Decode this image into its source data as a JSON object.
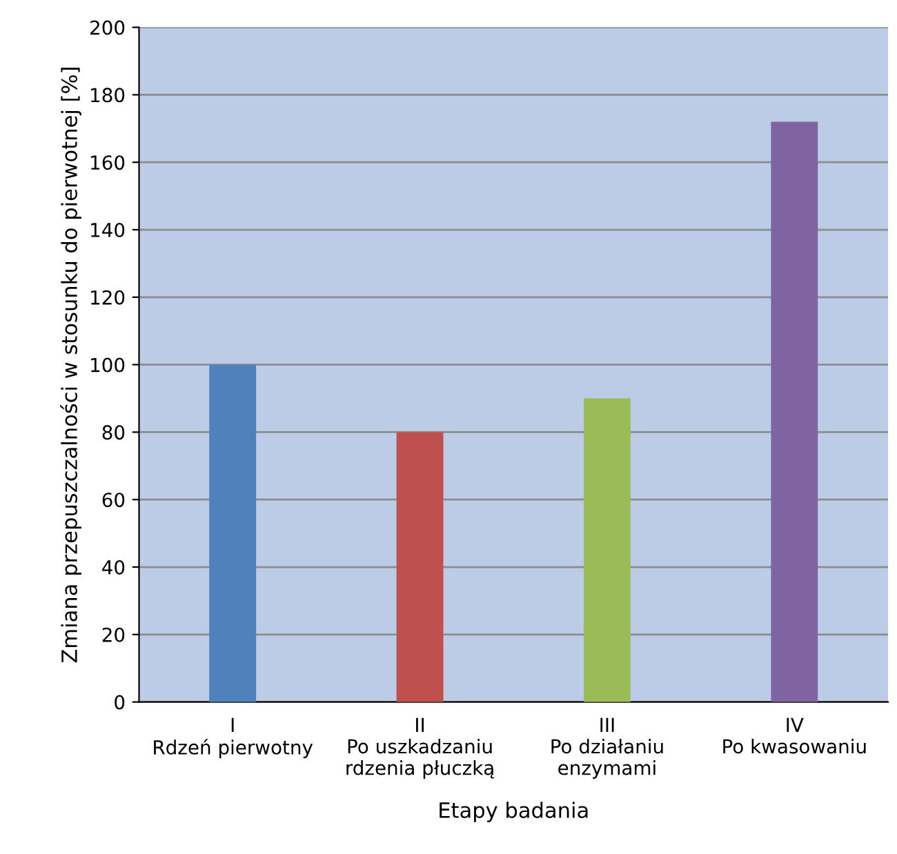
{
  "chart_data": {
    "type": "bar",
    "xlabel": "Etapy badania",
    "ylabel": "Zmiana przepuszczalności w stosunku do pierwotnej [%]",
    "categories": [
      "I\nRdzeń pierwotny",
      "II\nPo uszkadzaniu\nrdzenia płuczką",
      "III\nPo działaniu\nenzymami",
      "IV\nPo kwasowaniu"
    ],
    "values": [
      100,
      80,
      90,
      172
    ],
    "colors": [
      "#4f81bd",
      "#c0504d",
      "#9bbb59",
      "#8064a2"
    ],
    "ylim": [
      0,
      200
    ],
    "yticks": [
      0,
      20,
      40,
      60,
      80,
      100,
      120,
      140,
      160,
      180,
      200
    ],
    "grid": "y",
    "legend": false
  }
}
